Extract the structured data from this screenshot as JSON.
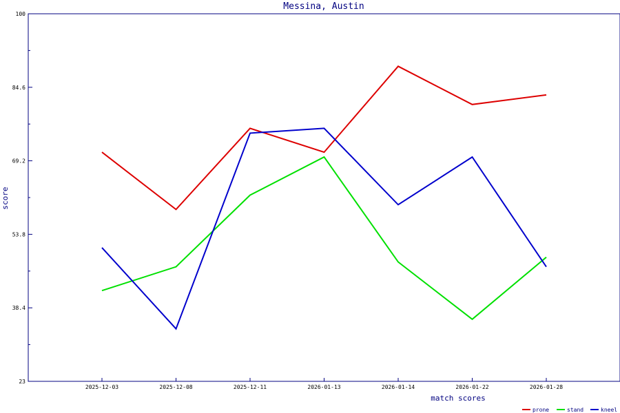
{
  "chart_data": {
    "type": "line",
    "title": "Messina, Austin",
    "xlabel": "match scores",
    "ylabel": "score",
    "categories": [
      "2025-12-03",
      "2025-12-08",
      "2025-12-11",
      "2026-01-13",
      "2026-01-14",
      "2026-01-22",
      "2026-01-28"
    ],
    "yticks": [
      "23",
      "38.4",
      "53.8",
      "69.2",
      "84.6",
      "100"
    ],
    "ylim": [
      23,
      100
    ],
    "legend_position": "bottom-right",
    "grid": false,
    "series": [
      {
        "name": "prone",
        "color": "#dd0000",
        "values": [
          71.0,
          59.0,
          76.0,
          71.0,
          89.0,
          81.0,
          83.0
        ]
      },
      {
        "name": "stand",
        "color": "#00e000",
        "values": [
          42.0,
          47.0,
          62.0,
          70.0,
          48.0,
          36.0,
          49.0
        ]
      },
      {
        "name": "kneel",
        "color": "#0000cc",
        "values": [
          51.0,
          34.0,
          75.0,
          76.0,
          60.0,
          70.0,
          47.0
        ]
      }
    ]
  }
}
